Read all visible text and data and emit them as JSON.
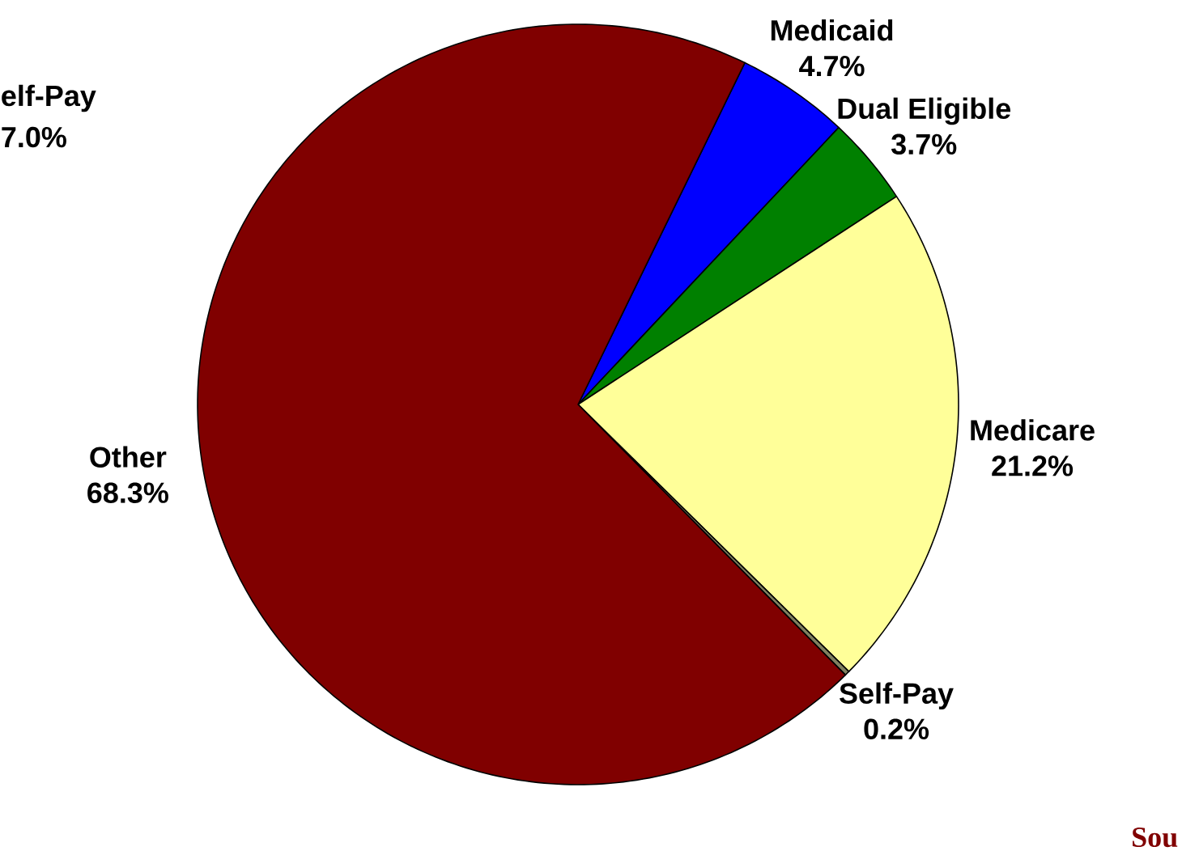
{
  "chart_data": {
    "type": "pie",
    "categories": [
      "Medicaid",
      "Dual Eligible",
      "Medicare",
      "Self-Pay",
      "Other"
    ],
    "values": [
      4.7,
      3.7,
      21.2,
      0.2,
      68.3
    ],
    "value_labels": [
      "4.7%",
      "3.7%",
      "21.2%",
      "0.2%",
      "68.3%"
    ],
    "colors": [
      "#0000ff",
      "#008000",
      "#ffff99",
      "#808060",
      "#800000"
    ],
    "annotations": [
      "elf-Pay",
      "7.0%",
      "Sou"
    ]
  }
}
